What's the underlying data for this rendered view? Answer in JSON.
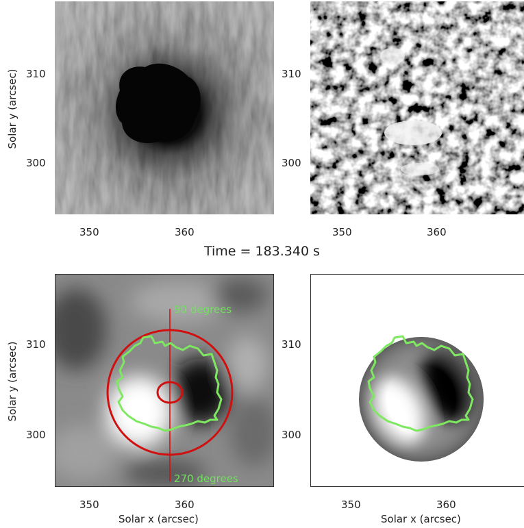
{
  "title": "Time = 183.340 s",
  "panels": {
    "top_left": {
      "ylabel": "Solar y (arcsec)",
      "yticks": [
        "310",
        "300"
      ],
      "xticks": [
        "350",
        "360"
      ]
    },
    "top_right": {
      "yticks": [
        "310",
        "300"
      ],
      "xticks": [
        "350",
        "360"
      ]
    },
    "bottom_left": {
      "ylabel": "Solar y (arcsec)",
      "xlabel": "Solar x (arcsec)",
      "yticks": [
        "310",
        "300"
      ],
      "xticks": [
        "350",
        "360"
      ],
      "annotation_top": "90 degrees",
      "annotation_bottom": "270 degrees"
    },
    "bottom_right": {
      "xlabel": "Solar x (arcsec)",
      "yticks": [
        "310",
        "300"
      ],
      "xticks": [
        "350",
        "360"
      ]
    }
  },
  "colors": {
    "green_contour": "#7ee860",
    "red_circle": "#d01010",
    "annotation_text": "#6fe35a"
  }
}
